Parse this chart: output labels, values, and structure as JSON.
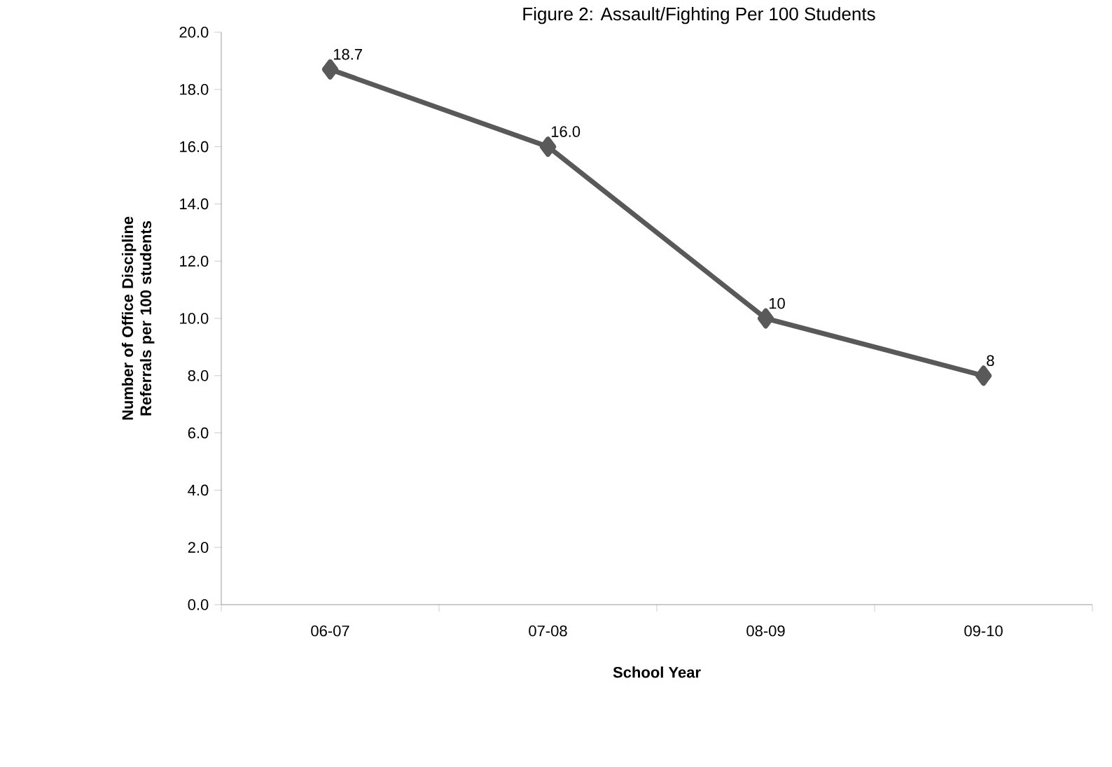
{
  "chart_data": {
    "type": "line",
    "title": "Figure 2: Assault/Fighting Per 100 Students",
    "xlabel": "School Year",
    "ylabel": "Number of Office Discipline Referrals per 100 students",
    "categories": [
      "06-07",
      "07-08",
      "08-09",
      "09-10"
    ],
    "values": [
      18.7,
      16.0,
      10,
      8
    ],
    "value_labels": [
      "18.7",
      "16.0",
      "10",
      "8"
    ],
    "color": "#595959",
    "marker": "diamond",
    "line_style": "solid",
    "ylim": [
      0,
      20
    ],
    "yticks": [
      {
        "value": 0,
        "label": "0.0"
      },
      {
        "value": 2,
        "label": "2.0"
      },
      {
        "value": 4,
        "label": "4.0"
      },
      {
        "value": 6,
        "label": "6.0"
      },
      {
        "value": 8,
        "label": "8.0"
      },
      {
        "value": 10,
        "label": "10.0"
      },
      {
        "value": 12,
        "label": "12.0"
      },
      {
        "value": 14,
        "label": "14.0"
      },
      {
        "value": 16,
        "label": "16.0"
      },
      {
        "value": 18,
        "label": "18.0"
      },
      {
        "value": 20,
        "label": "20.0"
      }
    ]
  }
}
